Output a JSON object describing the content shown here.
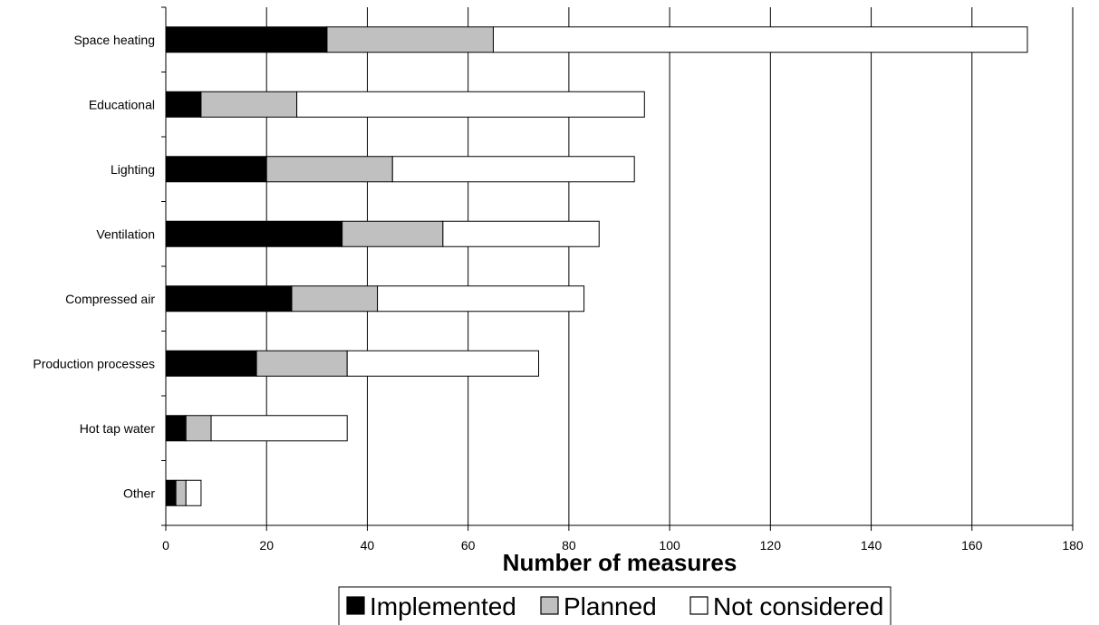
{
  "chart_data": {
    "type": "bar",
    "orientation": "horizontal",
    "stacked": true,
    "categories": [
      "Space heating",
      "Educational",
      "Lighting",
      "Ventilation",
      "Compressed air",
      "Production processes",
      "Hot tap water",
      "Other"
    ],
    "series": [
      {
        "name": "Implemented",
        "color": "#000000",
        "values": [
          32,
          7,
          20,
          35,
          25,
          18,
          4,
          2
        ]
      },
      {
        "name": "Planned",
        "color": "#c0c0c0",
        "values": [
          33,
          19,
          25,
          20,
          17,
          18,
          5,
          2
        ]
      },
      {
        "name": "Not considered",
        "color": "#ffffff",
        "values": [
          106,
          69,
          48,
          31,
          41,
          38,
          27,
          3
        ]
      }
    ],
    "xlabel": "Number of measures",
    "ylabel": "",
    "title": "",
    "xlim": [
      0,
      180
    ],
    "xticks": [
      0,
      20,
      40,
      60,
      80,
      100,
      120,
      140,
      160,
      180
    ],
    "grid": "vertical",
    "legend_position": "bottom"
  }
}
